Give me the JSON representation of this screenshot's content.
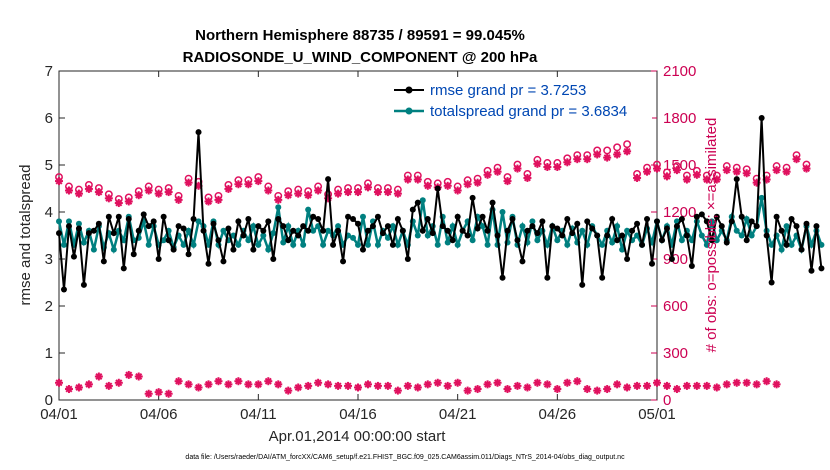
{
  "chart_data": {
    "type": "line",
    "title_line1": "Northern Hemisphere 88735 / 89591 = 99.045%",
    "title_line2": "RADIOSONDE_U_WIND_COMPONENT @ 200 hPa",
    "xlabel": "Apr.01,2014 00:00:00 start",
    "ylabel_left": "rmse and totalspread",
    "ylabel_right": "# of obs: o=possible; ×=assimilated",
    "footnote": "data file: /Users/raeder/DAI/ATM_forcXX/CAM6_setup/f.e21.FHIST_BGC.f09_025.CAM6assim.011/Diags_NTrS_2014-04/obs_diag_output.nc",
    "x_ticks": [
      "04/01",
      "04/06",
      "04/11",
      "04/16",
      "04/21",
      "04/26",
      "05/01"
    ],
    "x_tick_days": [
      0,
      5,
      10,
      15,
      20,
      25,
      30
    ],
    "xlim_days": [
      0,
      30
    ],
    "ylim_left": [
      0,
      7
    ],
    "yticks_left": [
      "0",
      "1",
      "2",
      "3",
      "4",
      "5",
      "6",
      "7"
    ],
    "ylim_right": [
      0,
      2100
    ],
    "yticks_right": [
      "0",
      "300",
      "600",
      "900",
      "1200",
      "1500",
      "1800",
      "2100"
    ],
    "legend": [
      {
        "label": "rmse grand pr = 3.7253",
        "color": "#000000"
      },
      {
        "label": "totalspread grand pr = 3.6834",
        "color": "#008080"
      }
    ],
    "colors": {
      "rmse": "#000000",
      "spread": "#008080",
      "obs": "#e0115f",
      "right_axis": "#cc0052"
    },
    "grid": false,
    "legend_location": "top-right",
    "sample_interval_days": 0.25,
    "series": [
      {
        "name": "rmse grand pr = 3.7253",
        "values": [
          3.55,
          2.35,
          3.7,
          3.05,
          3.65,
          2.45,
          3.55,
          3.6,
          3.75,
          2.95,
          3.9,
          3.55,
          3.9,
          2.8,
          3.85,
          3.1,
          3.6,
          3.95,
          3.7,
          3.8,
          3.0,
          3.9,
          3.4,
          3.2,
          3.7,
          3.65,
          3.1,
          3.85,
          5.7,
          3.6,
          2.9,
          3.75,
          3.4,
          2.95,
          3.65,
          3.2,
          3.8,
          3.5,
          3.85,
          3.2,
          3.7,
          3.6,
          3.8,
          3.0,
          3.85,
          3.7,
          3.4,
          3.6,
          3.5,
          3.7,
          3.6,
          3.9,
          3.85,
          3.6,
          4.7,
          3.3,
          3.6,
          2.95,
          3.9,
          3.85,
          3.75,
          3.2,
          3.6,
          3.7,
          3.9,
          3.55,
          3.7,
          3.3,
          3.85,
          3.6,
          3.0,
          4.05,
          4.2,
          3.6,
          3.85,
          3.55,
          4.5,
          3.7,
          3.6,
          3.4,
          3.9,
          3.6,
          3.5,
          4.3,
          3.65,
          3.9,
          3.6,
          4.2,
          3.5,
          2.6,
          3.6,
          3.85,
          3.4,
          2.95,
          3.6,
          3.7,
          3.55,
          3.8,
          2.6,
          3.7,
          3.65,
          3.5,
          3.85,
          3.55,
          3.75,
          2.45,
          3.8,
          3.65,
          3.5,
          2.6,
          3.5,
          3.85,
          3.4,
          3.5,
          3.0,
          3.6,
          3.75,
          3.3,
          3.85,
          2.9,
          3.8,
          3.4,
          3.65,
          3.0,
          3.7,
          3.85,
          3.5,
          2.85,
          3.9,
          3.95,
          3.8,
          3.4,
          3.9,
          3.7,
          3.35,
          3.8,
          4.7,
          3.9,
          3.4,
          3.8,
          3.7,
          6.0,
          3.5,
          2.5,
          3.9,
          3.6,
          3.3,
          3.85,
          3.7,
          3.2,
          3.75,
          2.75,
          3.7,
          2.8
        ]
      },
      {
        "name": "totalspread grand pr = 3.6834",
        "values": [
          3.8,
          3.3,
          3.8,
          3.3,
          3.75,
          3.35,
          3.6,
          3.2,
          3.7,
          3.25,
          3.55,
          3.2,
          3.6,
          3.4,
          3.9,
          3.4,
          3.45,
          3.8,
          3.3,
          3.7,
          3.3,
          3.4,
          3.6,
          3.25,
          3.5,
          3.3,
          3.6,
          3.3,
          3.8,
          3.7,
          3.3,
          3.8,
          3.3,
          3.6,
          3.4,
          3.5,
          3.3,
          3.6,
          3.4,
          3.7,
          3.3,
          3.5,
          3.2,
          3.55,
          4.1,
          3.35,
          3.7,
          3.3,
          3.6,
          3.3,
          4.05,
          3.6,
          3.7,
          3.3,
          3.6,
          3.5,
          3.7,
          3.3,
          3.5,
          3.45,
          3.3,
          3.9,
          3.3,
          3.8,
          3.3,
          3.6,
          3.45,
          3.7,
          3.3,
          3.6,
          3.3,
          3.8,
          3.5,
          4.25,
          3.5,
          3.7,
          3.3,
          3.9,
          3.35,
          3.7,
          3.3,
          3.6,
          3.8,
          3.4,
          3.9,
          3.7,
          3.3,
          4.05,
          3.3,
          4.0,
          3.35,
          3.9,
          3.3,
          3.7,
          3.35,
          3.8,
          3.4,
          3.6,
          3.3,
          3.7,
          3.4,
          3.6,
          3.3,
          3.65,
          3.35,
          3.6,
          3.3,
          3.7,
          3.5,
          3.3,
          3.6,
          3.35,
          3.7,
          3.2,
          3.6,
          3.4,
          3.5,
          3.3,
          3.65,
          3.35,
          3.8,
          3.4,
          3.7,
          3.3,
          3.8,
          3.4,
          3.6,
          3.4,
          3.8,
          3.5,
          3.3,
          3.8,
          3.4,
          3.6,
          3.4,
          3.9,
          3.6,
          3.5,
          3.85,
          3.5,
          3.7,
          4.3,
          3.6,
          3.3,
          3.5,
          3.2,
          3.7,
          3.3,
          3.5,
          3.2,
          3.7,
          3.3,
          3.6,
          3.3
        ]
      },
      {
        "name": "possible",
        "axis": "right",
        "values": [
          1410,
          1430,
          1350,
          1390,
          1330,
          1380,
          1360,
          1310,
          1340,
          1350,
          1300,
          1320,
          1270,
          1290,
          1280,
          1300,
          1320,
          1330,
          1350,
          1310,
          1330,
          1310,
          1340,
          1300,
          1290,
          1320,
          1400,
          1400,
          1380,
          1310,
          1280,
          1310,
          1290,
          1300,
          1360,
          1400,
          1390,
          1400,
          1390,
          1400,
          1410,
          1400,
          1350,
          1330,
          1290,
          1310,
          1320,
          1300,
          1330,
          1310,
          1320,
          1280,
          1350,
          1310,
          1300,
          1320,
          1330,
          1310,
          1340,
          1330,
          1340,
          1350,
          1370,
          1350,
          1340,
          1370,
          1340,
          1370,
          1330,
          1400,
          1420,
          1440,
          1420,
          1410,
          1380,
          1390,
          1370,
          1400,
          1380,
          1390,
          1350,
          1410,
          1390,
          1420,
          1400,
          1440,
          1450,
          1410,
          1470,
          1490,
          1410,
          1520,
          1490,
          1480,
          1430,
          1530,
          1520,
          1490,
          1500,
          1480,
          1500,
          1520,
          1530,
          1510,
          1550,
          1530,
          1550,
          1560,
          1580,
          1570,
          1580,
          1590,
          1600,
          1610,
          1620,
          1610,
          1430,
          1510,
          1470,
          1440,
          1490,
          1500,
          1440,
          1510,
          1480,
          1430,
          1420,
          1480,
          1450,
          1510,
          1420,
          1470,
          1420,
          1440,
          1480,
          1410,
          1470,
          1430,
          1460,
          1490,
          1400,
          1460,
          1420,
          1520,
          1480,
          1500,
          1470,
          1500,
          1550,
          1580,
          1490,
          1520
        ]
      },
      {
        "name": "assimilated",
        "axis": "right",
        "values": [
          1410,
          1430,
          1350,
          1390,
          1330,
          1380,
          1360,
          1310,
          1340,
          1350,
          1300,
          1320,
          1270,
          1290,
          1280,
          1300,
          1320,
          1330,
          1350,
          1310,
          1330,
          1310,
          1340,
          1300,
          1290,
          1320,
          1400,
          1400,
          1380,
          1310,
          1280,
          1310,
          1290,
          1300,
          1360,
          1400,
          1390,
          1400,
          1390,
          1400,
          1410,
          1400,
          1350,
          1330,
          1290,
          1310,
          1320,
          1300,
          1330,
          1310,
          1320,
          1280,
          1350,
          1310,
          1300,
          1320,
          1330,
          1310,
          1340,
          1330,
          1340,
          1350,
          1370,
          1350,
          1340,
          1370,
          1340,
          1370,
          1330,
          1400,
          1420,
          1440,
          1420,
          1410,
          1380,
          1390,
          1370,
          1400,
          1380,
          1390,
          1350,
          1410,
          1390,
          1420,
          1400,
          1440,
          1450,
          1410,
          1470,
          1490,
          1410,
          1520,
          1490,
          1480,
          1430,
          1530,
          1520,
          1490,
          1500,
          1480,
          1500,
          1520,
          1530,
          1510,
          1550,
          1530,
          1550,
          1560,
          1580,
          1570,
          1560,
          1570,
          1580,
          1590,
          1600,
          1590,
          1430,
          1510,
          1470,
          1440,
          1490,
          1500,
          1440,
          1510,
          1480,
          1430,
          1420,
          1480,
          1450,
          1510,
          1420,
          1470,
          1420,
          1440,
          1480,
          1410,
          1470,
          1430,
          1460,
          1490,
          1400,
          1460,
          1420,
          1520,
          1480,
          1500,
          1470,
          1500,
          1550,
          1580,
          1490,
          1520
        ]
      },
      {
        "name": "assimilated-lower",
        "axis": "right",
        "values": [
          110,
          90,
          70,
          120,
          80,
          90,
          100,
          160,
          150,
          120,
          90,
          170,
          110,
          140,
          160,
          100,
          150,
          70,
          40,
          20,
          50,
          30,
          40,
          80,
          120,
          60,
          100,
          110,
          80,
          120,
          100,
          80,
          120,
          60,
          100,
          80,
          120,
          90,
          100,
          80,
          100,
          80,
          120,
          90,
          100,
          70,
          60,
          50,
          80,
          100,
          90,
          70,
          110,
          90,
          100,
          80,
          90,
          70,
          90,
          110,
          80,
          90,
          100,
          70,
          90,
          110,
          90,
          90,
          60,
          80,
          90,
          100,
          80,
          90,
          100,
          90,
          110,
          80,
          90,
          100,
          110,
          90,
          60,
          50,
          70,
          90,
          100,
          80,
          110,
          90,
          70,
          80,
          90,
          100,
          80,
          90,
          110,
          90,
          100,
          80,
          70,
          90,
          110,
          80,
          120,
          90,
          70,
          90,
          60,
          90,
          70,
          80,
          100,
          110,
          80,
          90,
          90,
          110,
          90,
          140,
          110,
          90,
          90,
          90,
          70,
          60,
          90,
          100,
          90,
          110,
          90,
          90,
          80,
          110,
          100,
          80,
          110,
          90,
          110,
          90,
          100,
          90,
          120,
          80,
          100
        ]
      }
    ]
  }
}
